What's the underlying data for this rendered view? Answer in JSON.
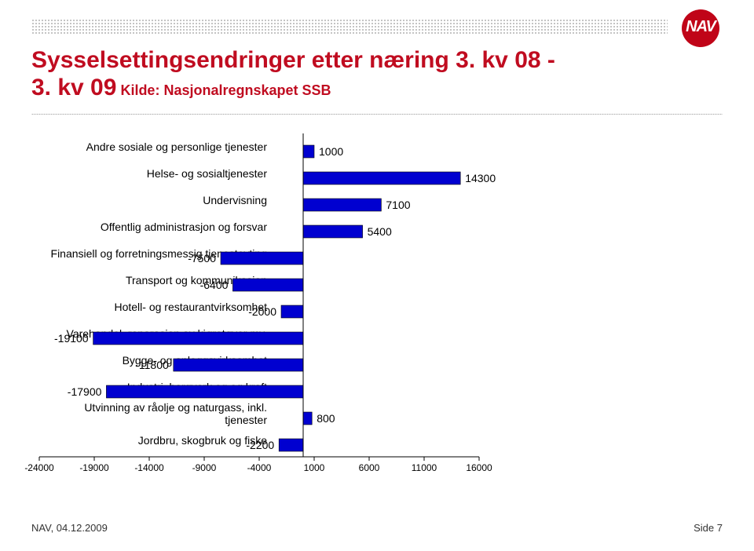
{
  "title_line1": "Sysselsettingsendringer etter næring 3. kv 08 -",
  "title_line2": "3. kv 09",
  "subtitle": " Kilde: Nasjonalregnskapet SSB",
  "logo_text": "NAV",
  "logo_color": "#c00418",
  "chart": {
    "type": "bar-horizontal",
    "xmin": -24000,
    "xmax": 16000,
    "xtick_step": 5000,
    "xticks": [
      -24000,
      -19000,
      -14000,
      -9000,
      -4000,
      1000,
      6000,
      11000,
      16000
    ],
    "zero_at": 0,
    "bar_color": "#0000d0",
    "bar_border": "#000000",
    "background": "#ffffff",
    "font_size_labels": 14,
    "font_size_ticks": 12,
    "categories": [
      {
        "label": "Andre sosiale og personlige tjenester",
        "value": 1000
      },
      {
        "label": "Helse- og sosialtjenester",
        "value": 14300
      },
      {
        "label": "Undervisning",
        "value": 7100
      },
      {
        "label": "Offentlig administrasjon og forsvar",
        "value": 5400
      },
      {
        "label": "Finansiell og forretningsmessig tjenesteyting",
        "value": -7500
      },
      {
        "label": "Transport og kommunikasjon",
        "value": -6400
      },
      {
        "label": "Hotell- og restaurantvirksomhet",
        "value": -2000
      },
      {
        "label": "Varehandel, reparasjon av kjøretøyer mv.",
        "value": -19100
      },
      {
        "label": "Bygge- og anleggsvirksomhet",
        "value": -11800
      },
      {
        "label": "Industri, bergverk og og kraft",
        "value": -17900
      },
      {
        "label": "Utvinning av råolje og naturgass, inkl. tjenester",
        "value": 800
      },
      {
        "label": "Jordbru, skogbruk og fiske",
        "value": -2200
      }
    ]
  },
  "footer_left": "NAV, 04.12.2009",
  "footer_right": "Side 7"
}
